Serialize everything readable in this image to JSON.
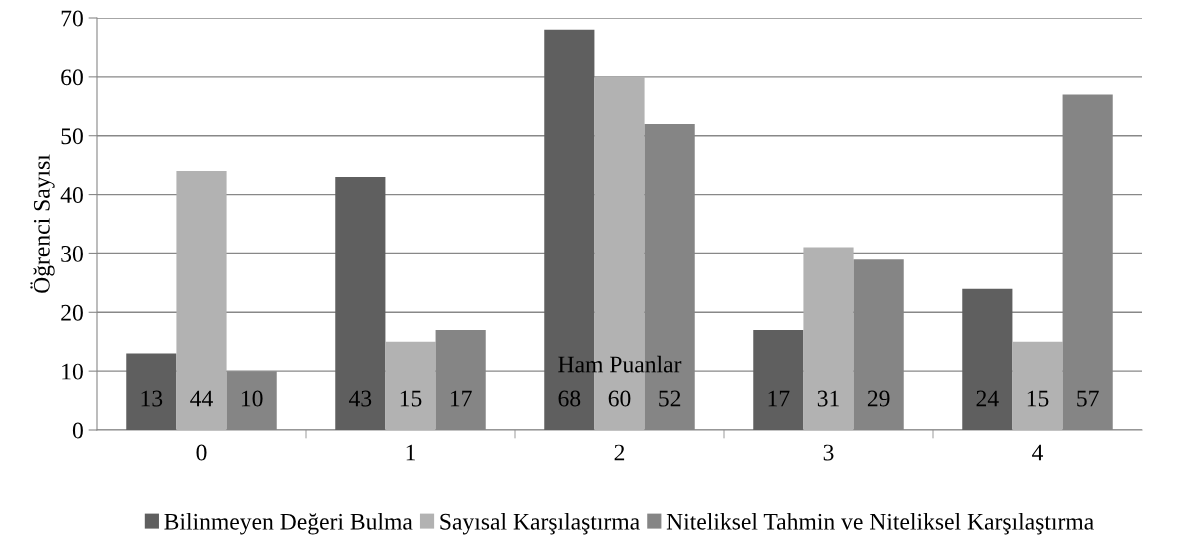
{
  "chart_data": {
    "type": "bar",
    "xlabel": "Ham Puanlar",
    "ylabel": "Öğrenci Sayısı",
    "categories": [
      "0",
      "1",
      "2",
      "3",
      "4"
    ],
    "series": [
      {
        "name": "Bilinmeyen Değeri Bulma",
        "color": "#5f5f5f",
        "values": [
          13,
          43,
          68,
          17,
          24
        ]
      },
      {
        "name": "Sayısal Karşılaştırma",
        "color": "#b2b2b2",
        "values": [
          44,
          15,
          60,
          31,
          15
        ]
      },
      {
        "name": "Niteliksel Tahmin ve Niteliksel Karşılaştırma",
        "color": "#858585",
        "values": [
          10,
          17,
          52,
          29,
          57
        ]
      }
    ],
    "ylim": [
      0,
      70
    ],
    "yticks": [
      0,
      10,
      20,
      30,
      40,
      50,
      60,
      70
    ],
    "grid": "y",
    "legend": "bottom",
    "data_labels": true
  }
}
